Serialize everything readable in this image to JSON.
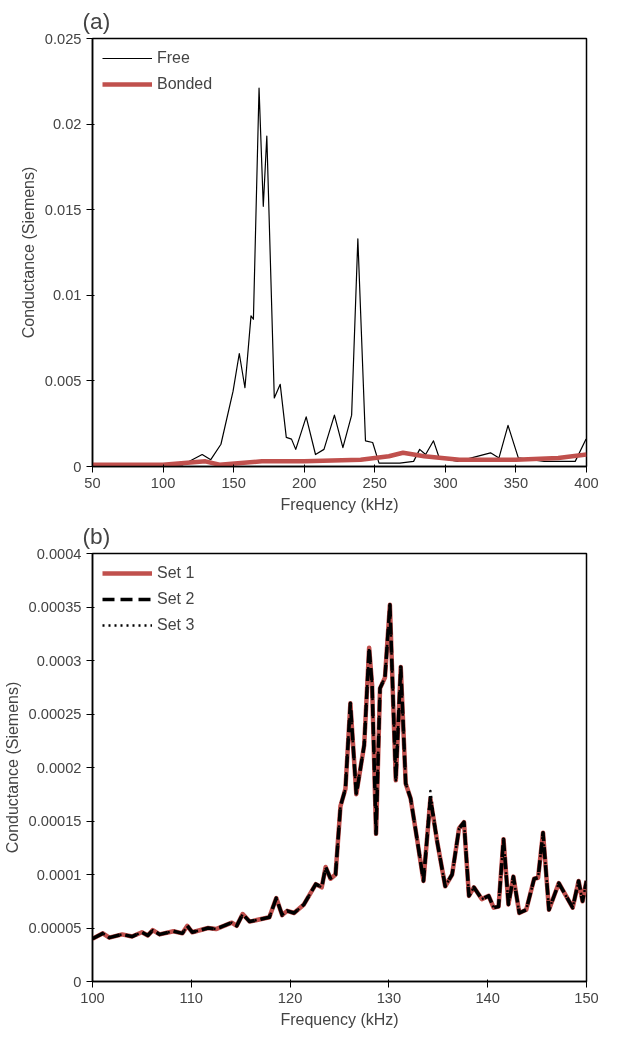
{
  "chart_data": [
    {
      "type": "line",
      "title": "(a)",
      "xlabel": "Frequency (kHz)",
      "ylabel": "Conductance (Siemens)",
      "xlim": [
        50,
        400
      ],
      "ylim": [
        0,
        0.025
      ],
      "xticks": [
        50,
        100,
        150,
        200,
        250,
        300,
        350,
        400
      ],
      "yticks": [
        0,
        0.005,
        0.01,
        0.015,
        0.02,
        0.025
      ],
      "grid": false,
      "legend": "top left",
      "series": [
        {
          "name": "Free",
          "color": "#000000",
          "line_style": "solid",
          "x": [
            51,
            90,
            114,
            127.7,
            133.8,
            141,
            149.6,
            154,
            158,
            162.3,
            164,
            168,
            171,
            173.5,
            178.8,
            183,
            187.3,
            191,
            194,
            201.4,
            208,
            214,
            221.4,
            227.4,
            233.6,
            238,
            243.4,
            248.5,
            253,
            267.7,
            277.5,
            281.8,
            286,
            291.6,
            295.7,
            309,
            332,
            338,
            344.4,
            351.7,
            370,
            392,
            399.7
          ],
          "values": [
            0.0001,
            0.0001,
            0.0001,
            0.0007,
            0.0004,
            0.0013,
            0.0044,
            0.0066,
            0.0046,
            0.0088,
            0.0086,
            0.0221,
            0.0152,
            0.0193,
            0.004,
            0.0048,
            0.0017,
            0.0016,
            0.001,
            0.0029,
            0.0007,
            0.001,
            0.003,
            0.0011,
            0.003,
            0.0133,
            0.0015,
            0.0014,
            0.0002,
            0.0002,
            0.0003,
            0.001,
            0.0007,
            0.0015,
            0.0005,
            0.0003,
            0.0008,
            0.0005,
            0.0024,
            0.0005,
            0.0003,
            0.0003,
            0.0016
          ]
        },
        {
          "name": "Bonded",
          "color": "#c0504d",
          "line_style": "solid",
          "x": [
            50,
            100,
            130,
            140,
            170,
            200,
            240,
            260,
            270,
            285,
            310,
            350,
            380,
            400
          ],
          "values": [
            0.0001,
            0.0001,
            0.0003,
            0.0001,
            0.0003,
            0.0003,
            0.0004,
            0.0006,
            0.0008,
            0.0006,
            0.0004,
            0.0004,
            0.0005,
            0.0007
          ]
        }
      ]
    },
    {
      "type": "line",
      "title": "(b)",
      "xlabel": "Frequency (kHz)",
      "ylabel": "Conductance (Siemens)",
      "xlim": [
        100,
        150
      ],
      "ylim": [
        0,
        0.0004
      ],
      "xticks": [
        100,
        110,
        120,
        130,
        140,
        150
      ],
      "yticks": [
        0,
        {
          "value": 5e-05,
          "label": "0.00005"
        },
        0.0001,
        0.00015,
        0.0002,
        0.00025,
        0.0003,
        0.00035,
        0.0004
      ],
      "grid": false,
      "legend": "top left",
      "series": [
        {
          "name": "Set 1",
          "color": "#c0504d",
          "line_style": "solid",
          "values": [
            4e-05,
            4.5e-05,
            4.1e-05,
            4.4e-05,
            4.2e-05,
            4.6e-05,
            4.3e-05,
            4.8e-05,
            4.4e-05,
            4.7e-05,
            4.5e-05,
            5.2e-05,
            4.6e-05,
            5e-05,
            4.9e-05,
            5.5e-05,
            5.2e-05,
            6.3e-05,
            5.6e-05,
            6e-05,
            7.8e-05,
            6.2e-05,
            6.6e-05,
            6.4e-05,
            7.2e-05,
            9.1e-05,
            8.8e-05,
            0.000107,
            9.6e-05,
            0.0001,
            0.000164,
            0.00018,
            0.00026,
            0.000175,
            0.000221,
            0.000312,
            0.000277,
            0.000138,
            0.000274,
            0.000284,
            0.000352,
            0.000188,
            0.000294,
            0.000185,
            0.000171,
            0.000136,
            9.4e-05,
            0.000171,
            0.00013,
            8.9e-05,
            0.0001,
            0.000143,
            0.000149,
            8e-05,
            8.8e-05,
            7.7e-05,
            8e-05,
            6.9e-05,
            7e-05,
            0.000133,
            7.2e-05,
            9.8e-05,
            6.4e-05,
            6.7e-05,
            9.6e-05,
            9.7e-05,
            0.000139,
            6.7e-05,
            9.2e-05,
            6.9e-05,
            9.4e-05,
            7.5e-05,
            9.4e-05
          ]
        },
        {
          "name": "Set 2",
          "color": "#000000",
          "line_style": "dashed",
          "values": [
            4e-05,
            4.5e-05,
            4.1e-05,
            4.4e-05,
            4.2e-05,
            4.6e-05,
            4.3e-05,
            4.8e-05,
            4.4e-05,
            4.7e-05,
            4.5e-05,
            5.2e-05,
            4.6e-05,
            5e-05,
            4.9e-05,
            5.5e-05,
            5.2e-05,
            6.3e-05,
            5.6e-05,
            6e-05,
            7.8e-05,
            6.2e-05,
            6.6e-05,
            6.4e-05,
            7.2e-05,
            9.1e-05,
            8.8e-05,
            0.000107,
            9.6e-05,
            0.0001,
            0.000164,
            0.00018,
            0.00026,
            0.000175,
            0.000221,
            0.000312,
            0.000277,
            0.000138,
            0.000274,
            0.000284,
            0.000352,
            0.000188,
            0.000294,
            0.000185,
            0.000171,
            0.000136,
            9.4e-05,
            0.000171,
            0.00013,
            8.9e-05,
            0.0001,
            0.000143,
            0.000149,
            8e-05,
            8.8e-05,
            7.7e-05,
            8e-05,
            6.9e-05,
            7e-05,
            0.000133,
            7.2e-05,
            9.8e-05,
            6.4e-05,
            6.7e-05,
            9.6e-05,
            9.7e-05,
            0.000139,
            6.7e-05,
            9.2e-05,
            6.9e-05,
            9.4e-05,
            7.5e-05,
            9.4e-05
          ]
        },
        {
          "name": "Set 3",
          "color": "#000000",
          "line_style": "dotted",
          "values": [
            4e-05,
            4.5e-05,
            4.1e-05,
            4.4e-05,
            4.2e-05,
            4.6e-05,
            4.3e-05,
            4.8e-05,
            4.4e-05,
            4.7e-05,
            4.5e-05,
            5.2e-05,
            4.6e-05,
            5e-05,
            4.9e-05,
            5.5e-05,
            5.2e-05,
            6.3e-05,
            5.6e-05,
            6e-05,
            7.8e-05,
            6.2e-05,
            6.6e-05,
            6.4e-05,
            7.2e-05,
            9.1e-05,
            8.8e-05,
            0.000107,
            9.6e-05,
            0.0001,
            0.000164,
            0.00018,
            0.00026,
            0.000175,
            0.000221,
            0.000312,
            0.000277,
            0.000138,
            0.000274,
            0.000284,
            0.000352,
            0.000188,
            0.000294,
            0.000185,
            0.000171,
            0.000136,
            9.4e-05,
            0.000178,
            0.00013,
            8.9e-05,
            0.0001,
            0.000143,
            0.000149,
            8e-05,
            8.8e-05,
            7.7e-05,
            8e-05,
            6.9e-05,
            7e-05,
            0.000133,
            7.2e-05,
            9.8e-05,
            6.4e-05,
            6.7e-05,
            9.6e-05,
            9.7e-05,
            0.000139,
            6.7e-05,
            9.2e-05,
            6.9e-05,
            9.4e-05,
            7.5e-05,
            9.4e-05
          ]
        }
      ],
      "x": [
        100,
        101.05,
        101.7,
        103,
        104,
        105,
        105.6,
        106.1,
        106.8,
        108.2,
        109.1,
        109.6,
        110.1,
        111.7,
        112.5,
        114.1,
        114.6,
        115.2,
        115.9,
        117.9,
        118.6,
        119.2,
        119.7,
        120.4,
        121.4,
        122.6,
        123.2,
        123.6,
        124.1,
        124.6,
        125.1,
        125.6,
        126.1,
        126.7,
        127.5,
        128,
        128.3,
        128.7,
        129.1,
        129.6,
        130.1,
        130.7,
        131.2,
        131.7,
        132.2,
        132.8,
        133.5,
        134.2,
        134.9,
        135.7,
        136.4,
        137.1,
        137.6,
        138.1,
        138.6,
        139.4,
        140.1,
        140.6,
        141.1,
        141.6,
        142.1,
        142.6,
        143.2,
        143.9,
        144.7,
        145.1,
        145.6,
        146.2,
        147.2,
        148.6,
        149.2,
        149.6,
        150
      ]
    }
  ]
}
